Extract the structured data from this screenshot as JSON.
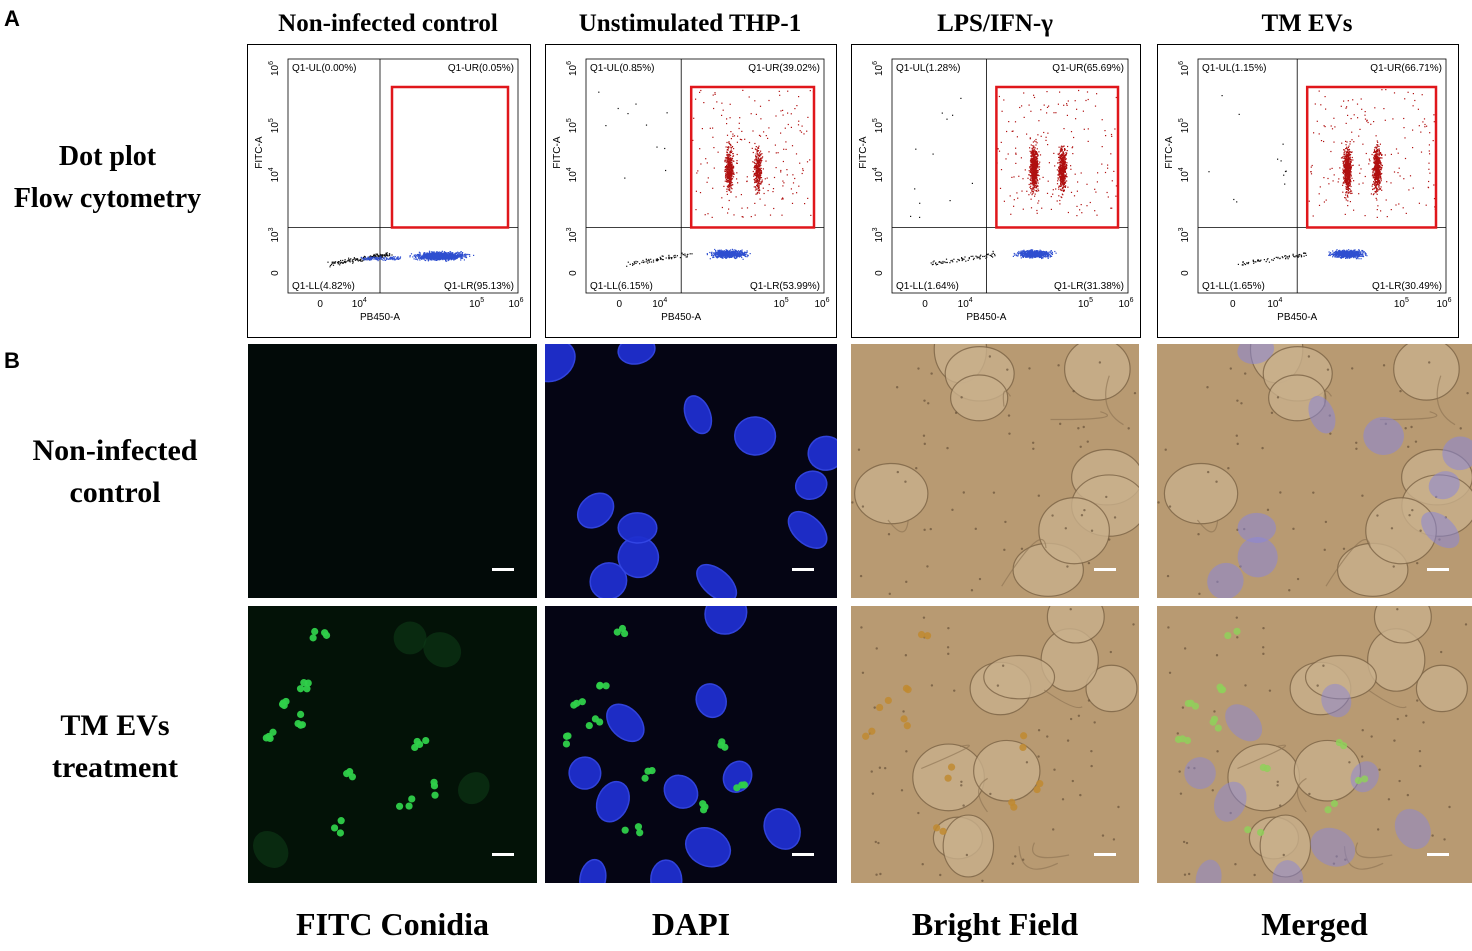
{
  "panel_labels": {
    "a": "A",
    "b": "B"
  },
  "column_titles": [
    "Non-infected control",
    "Unstimulated THP-1",
    "LPS/IFN-γ",
    "TM EVs"
  ],
  "row_labels": {
    "dot_plot": [
      "Dot plot",
      "Flow cytometry"
    ],
    "control": [
      "Non-infected",
      "control"
    ],
    "treatment": [
      "TM EVs",
      "treatment"
    ]
  },
  "bottom_labels": [
    "FITC Conidia",
    "DAPI",
    "Bright Field",
    "Merged"
  ],
  "axes": {
    "x_label": "PB450-A",
    "y_label": "FITC-A",
    "x_ticks": [
      "0",
      "10",
      "10",
      "10"
    ],
    "x_exp": [
      "",
      "4",
      "5",
      "6"
    ],
    "y_ticks": [
      "0",
      "10",
      "10",
      "10",
      "10"
    ],
    "y_exp": [
      "",
      "3",
      "4",
      "5",
      "6"
    ]
  },
  "flow_plots": [
    {
      "ul": "Q1-UL(0.00%)",
      "ur": "Q1-UR(0.05%)",
      "ll": "Q1-LL(4.82%)",
      "lr": "Q1-LR(95.13%)"
    },
    {
      "ul": "Q1-UL(0.85%)",
      "ur": "Q1-UR(39.02%)",
      "ll": "Q1-LL(6.15%)",
      "lr": "Q1-LR(53.99%)"
    },
    {
      "ul": "Q1-UL(1.28%)",
      "ur": "Q1-UR(65.69%)",
      "ll": "Q1-LL(1.64%)",
      "lr": "Q1-LR(31.38%)"
    },
    {
      "ul": "Q1-UL(1.15%)",
      "ur": "Q1-UR(66.71%)",
      "ll": "Q1-LL(1.65%)",
      "lr": "Q1-LR(30.49%)"
    }
  ],
  "colors": {
    "red_gate": "#e0161b",
    "red_dots": "#b01010",
    "blue_dots": "#2f4fd0",
    "black_dots": "#111111",
    "fitc_green": "#2fd04a",
    "dapi_blue": "#1f2fcf",
    "bright_field": "#b89a72"
  }
}
